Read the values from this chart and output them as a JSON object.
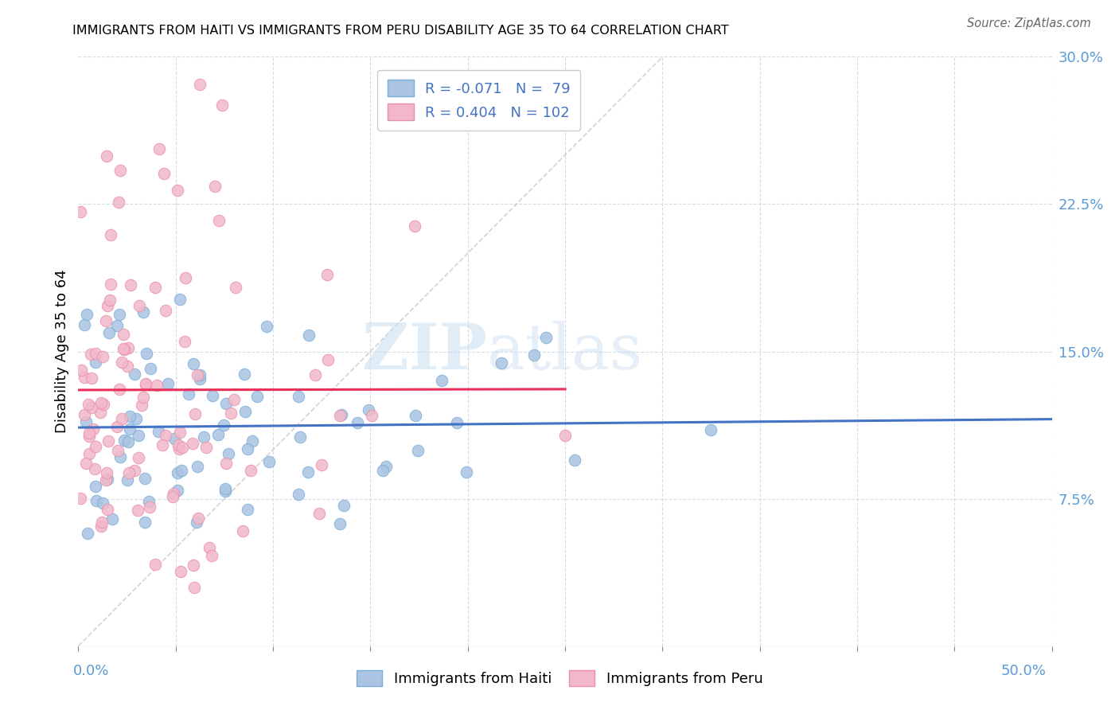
{
  "title": "IMMIGRANTS FROM HAITI VS IMMIGRANTS FROM PERU DISABILITY AGE 35 TO 64 CORRELATION CHART",
  "source": "Source: ZipAtlas.com",
  "ylabel": "Disability Age 35 to 64",
  "xlim": [
    0.0,
    0.5
  ],
  "ylim": [
    0.0,
    0.3
  ],
  "ytick_vals": [
    0.075,
    0.15,
    0.225,
    0.3
  ],
  "ytick_labels": [
    "7.5%",
    "15.0%",
    "22.5%",
    "30.0%"
  ],
  "xtick_vals": [
    0.0,
    0.05,
    0.1,
    0.15,
    0.2,
    0.25,
    0.3,
    0.35,
    0.4,
    0.45,
    0.5
  ],
  "haiti_color": "#aac4e2",
  "peru_color": "#f2b8ca",
  "haiti_edge": "#7aaed6",
  "peru_edge": "#e890aa",
  "line_haiti_color": "#4472c4",
  "line_peru_color": "#e8305a",
  "diagonal_color": "#c8c8c8",
  "text_color": "#5b9bd5",
  "R_haiti": -0.071,
  "N_haiti": 79,
  "R_peru": 0.404,
  "N_peru": 102,
  "watermark_zip": "ZIP",
  "watermark_atlas": "atlas",
  "haiti_seed": 42,
  "peru_seed": 99
}
